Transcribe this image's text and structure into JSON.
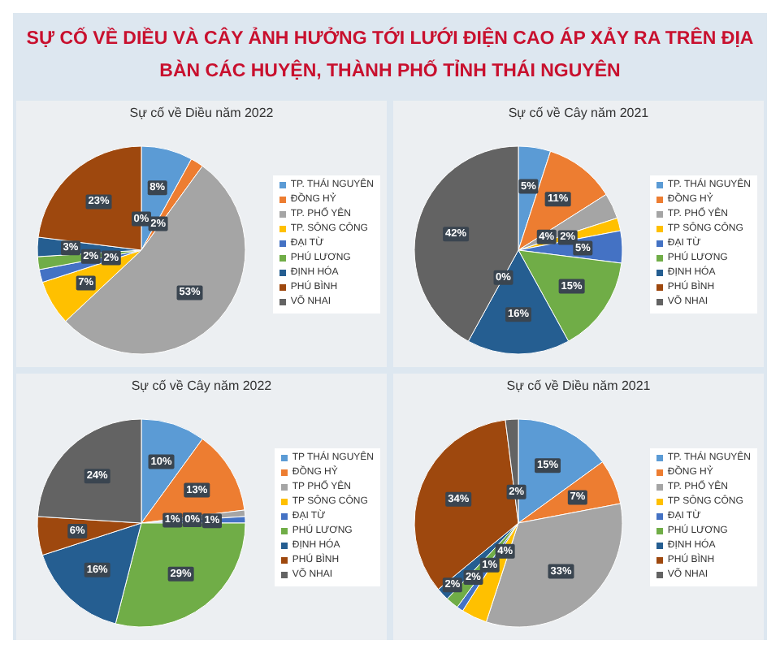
{
  "chart_data": [
    {
      "type": "other",
      "title": "SỰ CỐ VỀ DIỀU VÀ CÂY ẢNH HƯỞNG TỚI LƯỚI ĐIỆN CAO ÁP XẢY RA TRÊN ĐỊA BÀN CÁC HUYỆN, THÀNH PHỐ TỈNH THÁI NGUYÊN"
    },
    {
      "type": "pie",
      "title": "Sự cố về Diều năm 2022",
      "legend": "right",
      "categories": [
        "TP. THÁI NGUYÊN",
        "ĐỒNG HỶ",
        "TP. PHỔ YÊN",
        "TP. SÔNG CÔNG",
        "ĐẠI TỪ",
        "PHÚ LƯƠNG",
        "ĐỊNH HÓA",
        "PHÚ BÌNH",
        "VÕ NHAI"
      ],
      "values": [
        8,
        2,
        53,
        7,
        2,
        2,
        3,
        23,
        0
      ],
      "value_labels": [
        "8%",
        "2%",
        "53%",
        "7%",
        "2%",
        "2%",
        "3%",
        "23%",
        "0%"
      ],
      "colors": [
        "#5b9bd5",
        "#ed7d31",
        "#a5a5a5",
        "#ffc000",
        "#4472c4",
        "#70ad47",
        "#255e91",
        "#9e480e",
        "#636363"
      ]
    },
    {
      "type": "pie",
      "title": "Sự cố về Cây năm 2021",
      "legend": "right",
      "categories": [
        "TP. THÁI NGUYÊN",
        "ĐỒNG HỶ",
        "TP. PHỔ YÊN",
        "TP SÔNG CÔNG",
        "ĐẠI TỪ",
        "PHÚ LƯƠNG",
        "ĐỊNH HÓA",
        "PHÚ BÌNH",
        "VÕ NHAI"
      ],
      "values": [
        5,
        11,
        4,
        2,
        5,
        15,
        16,
        0,
        42
      ],
      "value_labels": [
        "5%",
        "11%",
        "4%",
        "2%",
        "5%",
        "15%",
        "16%",
        "0%",
        "42%"
      ],
      "colors": [
        "#5b9bd5",
        "#ed7d31",
        "#a5a5a5",
        "#ffc000",
        "#4472c4",
        "#70ad47",
        "#255e91",
        "#9e480e",
        "#636363"
      ]
    },
    {
      "type": "pie",
      "title": "Sự cố về Cây năm 2022",
      "legend": "right",
      "categories": [
        "TP THÁI NGUYÊN",
        "ĐỒNG HỶ",
        "TP PHỔ YÊN",
        "TP SÔNG CÔNG",
        "ĐẠI TỪ",
        "PHÚ LƯƠNG",
        "ĐỊNH HÓA",
        "PHÚ BÌNH",
        "VÕ NHAI"
      ],
      "values": [
        10,
        13,
        1,
        0,
        1,
        29,
        16,
        6,
        24
      ],
      "value_labels": [
        "10%",
        "13%",
        "1%",
        "0%",
        "1%",
        "29%",
        "16%",
        "6%",
        "24%"
      ],
      "colors": [
        "#5b9bd5",
        "#ed7d31",
        "#a5a5a5",
        "#ffc000",
        "#4472c4",
        "#70ad47",
        "#255e91",
        "#9e480e",
        "#636363"
      ]
    },
    {
      "type": "pie",
      "title": "Sự cố về Diều năm 2021",
      "legend": "right",
      "categories": [
        "TP. THÁI NGUYÊN",
        "ĐỒNG HỶ",
        "TP. PHỔ YÊN",
        "TP SÔNG CÔNG",
        "ĐẠI TỪ",
        "PHÚ LƯƠNG",
        "ĐỊNH HÓA",
        "PHÚ BÌNH",
        "VÕ NHAI"
      ],
      "values": [
        15,
        7,
        33,
        4,
        1,
        2,
        2,
        34,
        2
      ],
      "value_labels": [
        "15%",
        "7%",
        "33%",
        "4%",
        "1%",
        "2%",
        "2%",
        "34%",
        "2%"
      ],
      "colors": [
        "#5b9bd5",
        "#ed7d31",
        "#a5a5a5",
        "#ffc000",
        "#4472c4",
        "#70ad47",
        "#255e91",
        "#9e480e",
        "#636363"
      ]
    }
  ]
}
